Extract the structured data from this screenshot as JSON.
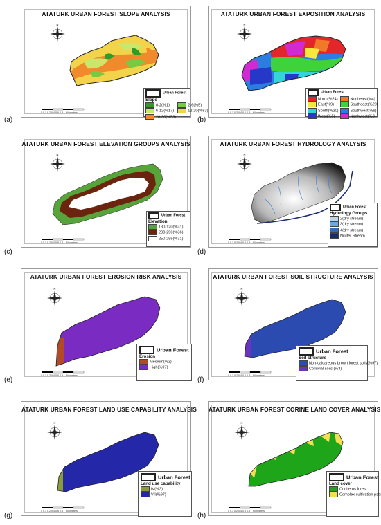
{
  "panels": [
    {
      "id": "a",
      "label": "(a)",
      "title": "ATATURK URBAN FOREST SLOPE ANALYSIS",
      "legend": {
        "feature": "Urban\nForest",
        "title": "Slope",
        "items": [
          {
            "label": "0-2(%1)",
            "color": "#2e9c2a"
          },
          {
            "label": "2-6(%5)",
            "color": "#7ac943"
          },
          {
            "label": "6-12(%17)",
            "color": "#c7e86a"
          },
          {
            "label": "12-20(%53)",
            "color": "#f3d34a"
          },
          {
            "label": "20-30(%53)",
            "color": "#f08a2c"
          }
        ]
      }
    },
    {
      "id": "b",
      "label": "(b)",
      "title": "ATATURK URBAN FOREST EXPOSITION ANALYSIS",
      "legend": {
        "feature": "Urban Forest",
        "title": "",
        "items": [
          {
            "label": "North(%24)",
            "color": "#e3262a"
          },
          {
            "label": "Northeast(%4)",
            "color": "#f07a2a"
          },
          {
            "label": "East(%9)",
            "color": "#f6e83c"
          },
          {
            "label": "Southeast(%20)",
            "color": "#3fd23a"
          },
          {
            "label": "South(%20)",
            "color": "#34d3d8"
          },
          {
            "label": "Southwest(%9)",
            "color": "#2b7de0"
          },
          {
            "label": "West(%5)",
            "color": "#2638c8"
          },
          {
            "label": "Northwest(%8)",
            "color": "#d02bd3"
          }
        ]
      }
    },
    {
      "id": "c",
      "label": "(c)",
      "title": "ATATURK URBAN FOREST ELEVATION GROUPS ANALYSIS",
      "legend": {
        "feature": "Urban Forest",
        "title": "Elevation",
        "items": [
          {
            "label": "130-120(%31)",
            "color": "#56a43a"
          },
          {
            "label": "200-250(%36)",
            "color": "#6b240e"
          },
          {
            "label": "250-255(%31)",
            "color": "#ffffff"
          }
        ]
      }
    },
    {
      "id": "d",
      "label": "(d)",
      "title": "ATATURK URBAN FOREST HYDROLOGY ANALYSIS",
      "legend": {
        "feature": "Urban Forest",
        "title": "Hydrology Groups",
        "items": [
          {
            "label": "2(dry stream)",
            "color": "#b9d6f0"
          },
          {
            "label": "3(dry stream)",
            "color": "#6fa6dc"
          },
          {
            "label": "4(dry stream)",
            "color": "#2e6fbd"
          },
          {
            "label": "Nilüfer Stream",
            "color": "#1b2c6b"
          }
        ]
      }
    },
    {
      "id": "e",
      "label": "(e)",
      "title": "ATATURK URBAN FOREST EROSION RISK ANALYSIS",
      "legend": {
        "feature": "Urban Forest",
        "title": "Erosion",
        "items": [
          {
            "label": "Medium(%3)",
            "color": "#b24a2a"
          },
          {
            "label": "High(%97)",
            "color": "#7a2bc2"
          }
        ]
      }
    },
    {
      "id": "f",
      "label": "(f)",
      "title": "ATATURK URBAN FOREST SOIL STRUCTURE ANALYSIS",
      "legend": {
        "feature": "Urban Forest",
        "title": "Soil structure",
        "items": [
          {
            "label": "Non-calcareous brown forest soils(%97)",
            "color": "#2b4bb0"
          },
          {
            "label": "Colluvial soils (%3)",
            "color": "#6a34c0"
          }
        ]
      }
    },
    {
      "id": "g",
      "label": "(g)",
      "title": "ATATURK URBAN FOREST LAND USE CAPABILITY ANALYSIS",
      "legend": {
        "feature": "Urban Forest",
        "title": "Land use capability",
        "items": [
          {
            "label": "IV(%3)",
            "color": "#8c9b3a"
          },
          {
            "label": "VII(%97)",
            "color": "#2327a8"
          }
        ]
      }
    },
    {
      "id": "h",
      "label": "(h)",
      "title": "ATATURK URBAN FOREST CORINE LAND COVER ANALYSIS",
      "legend": {
        "feature": "Urban Forest",
        "title": "Land cover",
        "items": [
          {
            "label": "Coniferus forest",
            "color": "#1fa51a"
          },
          {
            "label": "Complex cultivation patterns",
            "color": "#f3e052"
          }
        ]
      }
    }
  ],
  "scale_bar": {
    "ticks": "0  0.1 0.2   0.4    0.6    0.8",
    "unit": "Kilometers"
  }
}
